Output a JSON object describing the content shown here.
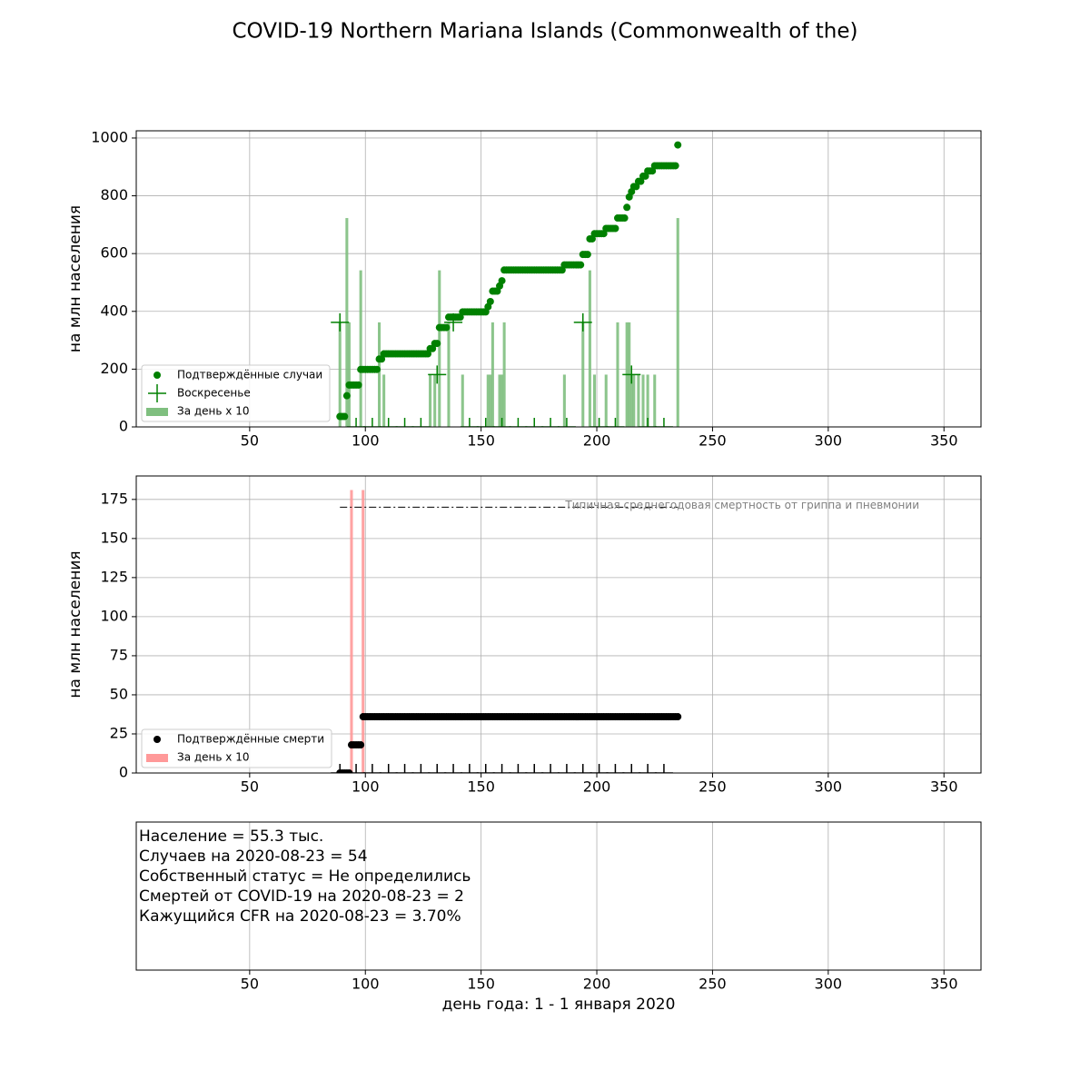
{
  "title": "COVID-19 Northern Mariana Islands (Commonwealth of the)",
  "chart_data": [
    {
      "type": "combo",
      "ylabel": "на млн населения",
      "xlim": [
        1,
        366
      ],
      "xticks": [
        50,
        100,
        150,
        200,
        250,
        300,
        350
      ],
      "ylim": [
        0,
        1025
      ],
      "yticks": [
        0,
        200,
        400,
        600,
        800,
        1000
      ],
      "grid": true,
      "legend": "lower left",
      "series": [
        {
          "name": "Подтверждённые случаи",
          "type": "scatter",
          "color": "#008000",
          "x": [
            89,
            90,
            91,
            92,
            93,
            94,
            95,
            96,
            97,
            98,
            99,
            100,
            101,
            102,
            103,
            104,
            105,
            106,
            107,
            108,
            109,
            110,
            111,
            112,
            113,
            114,
            115,
            116,
            117,
            118,
            119,
            120,
            121,
            122,
            123,
            124,
            125,
            126,
            127,
            128,
            129,
            130,
            131,
            132,
            133,
            134,
            135,
            136,
            137,
            138,
            139,
            140,
            141,
            142,
            143,
            144,
            145,
            146,
            147,
            148,
            149,
            150,
            151,
            152,
            153,
            154,
            155,
            156,
            157,
            158,
            159,
            160,
            161,
            162,
            163,
            164,
            165,
            166,
            167,
            168,
            169,
            170,
            171,
            172,
            173,
            174,
            175,
            176,
            177,
            178,
            179,
            180,
            181,
            182,
            183,
            184,
            185,
            186,
            187,
            188,
            189,
            190,
            191,
            192,
            193,
            194,
            195,
            196,
            197,
            198,
            199,
            200,
            201,
            202,
            203,
            204,
            205,
            206,
            207,
            208,
            209,
            210,
            211,
            212,
            213,
            214,
            215,
            216,
            217,
            218,
            219,
            220,
            221,
            222,
            223,
            224,
            225,
            226,
            227,
            228,
            229,
            230,
            231,
            232,
            233,
            234,
            235
          ],
          "values": [
            36,
            36,
            36,
            108,
            145,
            145,
            145,
            145,
            145,
            199,
            199,
            199,
            199,
            199,
            199,
            199,
            199,
            235,
            235,
            253,
            253,
            253,
            253,
            253,
            253,
            253,
            253,
            253,
            253,
            253,
            253,
            253,
            253,
            253,
            253,
            253,
            253,
            253,
            253,
            271,
            271,
            289,
            289,
            344,
            344,
            344,
            344,
            380,
            380,
            380,
            380,
            380,
            380,
            398,
            398,
            398,
            398,
            398,
            398,
            398,
            398,
            398,
            398,
            398,
            416,
            434,
            470,
            470,
            470,
            488,
            506,
            543,
            543,
            543,
            543,
            543,
            543,
            543,
            543,
            543,
            543,
            543,
            543,
            543,
            543,
            543,
            543,
            543,
            543,
            543,
            543,
            543,
            543,
            543,
            543,
            543,
            543,
            561,
            561,
            561,
            561,
            561,
            561,
            561,
            561,
            597,
            597,
            597,
            651,
            651,
            669,
            669,
            669,
            669,
            669,
            687,
            687,
            687,
            687,
            687,
            723,
            723,
            723,
            723,
            760,
            796,
            814,
            832,
            832,
            850,
            850,
            868,
            868,
            886,
            886,
            886,
            904,
            904,
            904,
            904,
            904,
            904,
            904,
            904,
            904,
            904,
            976
          ]
        },
        {
          "name": "Воскресенье",
          "type": "plus",
          "color": "#008000",
          "x": [
            89,
            96,
            103,
            110,
            117,
            124,
            131,
            138,
            145,
            152,
            159,
            166,
            173,
            180,
            187,
            194,
            201,
            208,
            215,
            222,
            229
          ],
          "values": [
            362,
            0,
            0,
            0,
            0,
            0,
            181,
            362,
            0,
            0,
            0,
            0,
            0,
            0,
            0,
            362,
            0,
            0,
            181,
            0,
            0
          ]
        },
        {
          "name": "За день x 10",
          "type": "bar",
          "color": "#7fbf7f",
          "x": [
            89,
            92,
            93,
            98,
            106,
            108,
            128,
            130,
            132,
            136,
            142,
            153,
            154,
            155,
            158,
            159,
            160,
            186,
            194,
            197,
            199,
            204,
            209,
            213,
            214,
            215,
            216,
            218,
            220,
            222,
            225,
            235
          ],
          "values": [
            362,
            723,
            362,
            542,
            362,
            181,
            181,
            181,
            542,
            362,
            181,
            181,
            181,
            362,
            181,
            181,
            362,
            181,
            362,
            542,
            181,
            181,
            362,
            362,
            362,
            181,
            181,
            181,
            181,
            181,
            181,
            723
          ]
        }
      ]
    },
    {
      "type": "combo",
      "ylabel": "на млн населения",
      "xlim": [
        1,
        366
      ],
      "xticks": [
        50,
        100,
        150,
        200,
        250,
        300,
        350
      ],
      "ylim": [
        0,
        190
      ],
      "yticks": [
        0,
        25,
        50,
        75,
        100,
        125,
        150,
        175
      ],
      "grid": true,
      "legend": "lower left",
      "reference_line": {
        "value": 170,
        "x": [
          89,
          235
        ],
        "label": "Типичная среднегодовая смертность от гриппа и пневмонии"
      },
      "series": [
        {
          "name": "Подтверждённые смерти",
          "type": "scatter",
          "color": "#000000",
          "x": [
            89,
            90,
            91,
            92,
            93,
            94,
            95,
            96,
            97,
            98,
            99,
            100,
            101,
            102,
            103,
            104,
            105,
            106,
            107,
            108,
            109,
            110,
            111,
            112,
            113,
            114,
            115,
            116,
            117,
            118,
            119,
            120,
            121,
            122,
            123,
            124,
            125,
            126,
            127,
            128,
            129,
            130,
            131,
            132,
            133,
            134,
            135,
            136,
            137,
            138,
            139,
            140,
            141,
            142,
            143,
            144,
            145,
            146,
            147,
            148,
            149,
            150,
            151,
            152,
            153,
            154,
            155,
            156,
            157,
            158,
            159,
            160,
            161,
            162,
            163,
            164,
            165,
            166,
            167,
            168,
            169,
            170,
            171,
            172,
            173,
            174,
            175,
            176,
            177,
            178,
            179,
            180,
            181,
            182,
            183,
            184,
            185,
            186,
            187,
            188,
            189,
            190,
            191,
            192,
            193,
            194,
            195,
            196,
            197,
            198,
            199,
            200,
            201,
            202,
            203,
            204,
            205,
            206,
            207,
            208,
            209,
            210,
            211,
            212,
            213,
            214,
            215,
            216,
            217,
            218,
            219,
            220,
            221,
            222,
            223,
            224,
            225,
            226,
            227,
            228,
            229,
            230,
            231,
            232,
            233,
            234,
            235
          ],
          "values": [
            0,
            0,
            0,
            0,
            0,
            18,
            18,
            18,
            18,
            18,
            36,
            36,
            36,
            36,
            36,
            36,
            36,
            36,
            36,
            36,
            36,
            36,
            36,
            36,
            36,
            36,
            36,
            36,
            36,
            36,
            36,
            36,
            36,
            36,
            36,
            36,
            36,
            36,
            36,
            36,
            36,
            36,
            36,
            36,
            36,
            36,
            36,
            36,
            36,
            36,
            36,
            36,
            36,
            36,
            36,
            36,
            36,
            36,
            36,
            36,
            36,
            36,
            36,
            36,
            36,
            36,
            36,
            36,
            36,
            36,
            36,
            36,
            36,
            36,
            36,
            36,
            36,
            36,
            36,
            36,
            36,
            36,
            36,
            36,
            36,
            36,
            36,
            36,
            36,
            36,
            36,
            36,
            36,
            36,
            36,
            36,
            36,
            36,
            36,
            36,
            36,
            36,
            36,
            36,
            36,
            36,
            36,
            36,
            36,
            36,
            36,
            36,
            36,
            36,
            36,
            36,
            36,
            36,
            36,
            36,
            36,
            36,
            36,
            36,
            36,
            36,
            36,
            36,
            36,
            36,
            36,
            36,
            36,
            36,
            36,
            36,
            36,
            36,
            36,
            36,
            36,
            36,
            36,
            36,
            36,
            36,
            36
          ]
        },
        {
          "type": "plus",
          "color": "#000000",
          "x": [
            89,
            96,
            103,
            110,
            117,
            124,
            131,
            138,
            145,
            152,
            159,
            166,
            173,
            180,
            187,
            194,
            201,
            208,
            215,
            222,
            229
          ],
          "values": [
            0,
            0,
            0,
            0,
            0,
            0,
            0,
            0,
            0,
            0,
            0,
            0,
            0,
            0,
            0,
            0,
            0,
            0,
            0,
            0,
            0
          ]
        },
        {
          "name": "За день x 10",
          "type": "bar",
          "color": "#ff9999",
          "x": [
            94,
            99
          ],
          "values": [
            181,
            181
          ]
        }
      ]
    },
    {
      "type": "text",
      "xlim": [
        1,
        366
      ],
      "xticks": [
        50,
        100,
        150,
        200,
        250,
        300,
        350
      ],
      "grid": true,
      "xlabel": "день года: 1 - 1 января 2020",
      "text_lines": [
        "Население = 55.3 тыс.",
        "Случаев на 2020-08-23 = 54",
        "Собственный статус = Не определились",
        "Смертей от COVID-19 на 2020-08-23 = 2",
        "Кажущийся CFR на 2020-08-23 = 3.70%"
      ]
    }
  ]
}
